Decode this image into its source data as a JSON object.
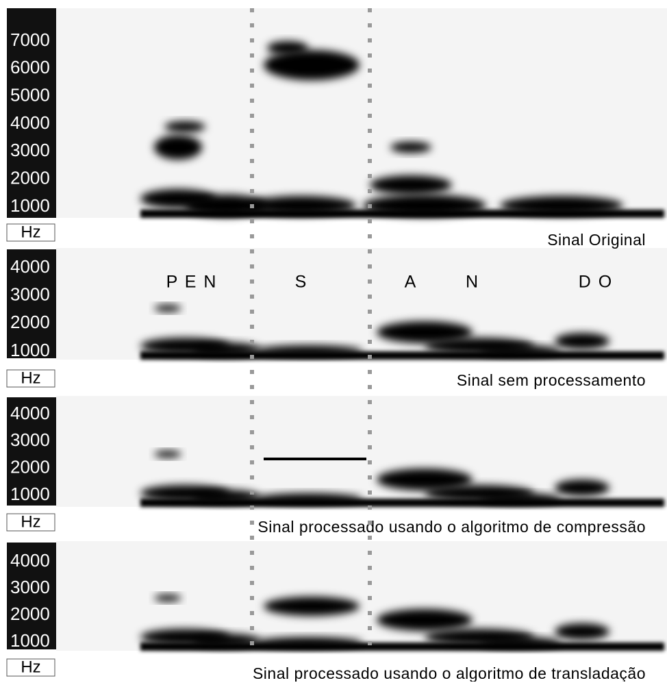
{
  "panels": [
    {
      "yticks": [
        7000,
        6000,
        5000,
        4000,
        3000,
        2000,
        1000
      ],
      "unit": "Hz",
      "caption": "Sinal Original"
    },
    {
      "yticks": [
        4000,
        3000,
        2000,
        1000
      ],
      "unit": "Hz",
      "caption": "Sinal sem processamento"
    },
    {
      "yticks": [
        4000,
        3000,
        2000,
        1000
      ],
      "unit": "Hz",
      "caption": "Sinal processado usando o algoritmo de compressão"
    },
    {
      "yticks": [
        4000,
        3000,
        2000,
        1000
      ],
      "unit": "Hz",
      "caption": "Sinal processado usando o algoritmo de transladação"
    }
  ],
  "phonemes": [
    "P E N",
    "S",
    "A",
    "N",
    "D O"
  ]
}
